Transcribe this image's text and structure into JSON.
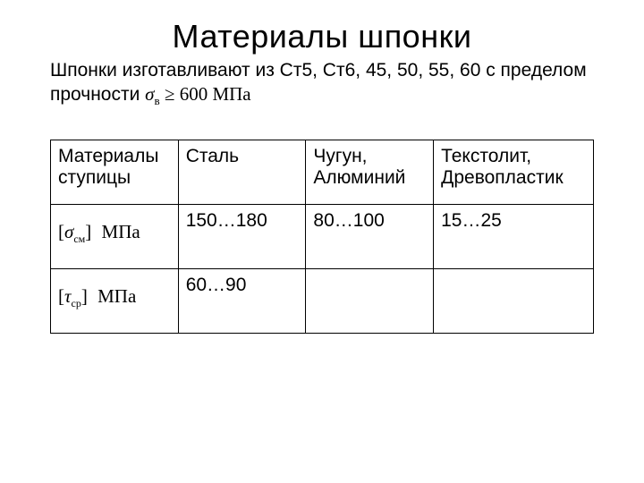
{
  "title": "Материалы шпонки",
  "lead": {
    "text_before": "Шпонки изготавливают из Ст5, Ст6, 45, 50, 55, 60 с пределом прочности ",
    "sigma_symbol": "σ",
    "sigma_sub": "в",
    "relation": " ≥ 600 ",
    "unit": "МПа"
  },
  "table": {
    "columns": [
      "Материалы ступицы",
      "Сталь",
      "Чугун, Алюминий",
      "Текстолит, Древопластик"
    ],
    "row_sigma": {
      "open": "[",
      "sym": "σ",
      "sub": "см",
      "close": "]",
      "unit": "МПа",
      "cells": [
        "150…180",
        "80…100",
        "15…25"
      ]
    },
    "row_tau": {
      "open": "[",
      "sym": "τ",
      "sub": "ср",
      "close": "]",
      "unit": "МПа",
      "cells": [
        "60…90",
        "",
        ""
      ]
    }
  },
  "colors": {
    "text": "#000000",
    "background": "#ffffff",
    "border": "#000000"
  }
}
